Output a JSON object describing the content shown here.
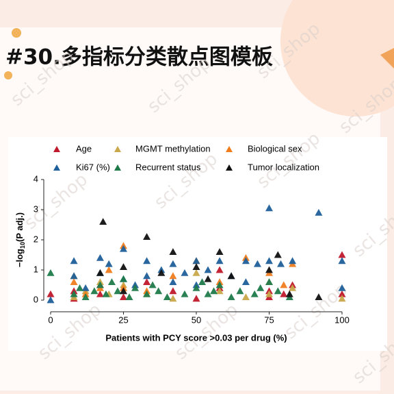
{
  "header": {
    "title": "#30.多指标分类散点图模板",
    "watermark": "sci_shop"
  },
  "chart_data": {
    "type": "scatter",
    "xlabel": "Patients with PCY score >0.03 per drug (%)",
    "ylabel_parts": [
      "−log",
      "10",
      "(P adj.)"
    ],
    "xlim": [
      0,
      100
    ],
    "xticks": [
      0,
      25,
      50,
      75,
      100
    ],
    "ylim": [
      0,
      4
    ],
    "yticks": [
      0,
      1,
      2,
      3,
      4
    ],
    "series": [
      {
        "name": "Age",
        "color": "#c0192b",
        "x": [
          0,
          8,
          8,
          17,
          17,
          25,
          33,
          42,
          50,
          58,
          58,
          75,
          75,
          80,
          83,
          100,
          100
        ],
        "values": [
          0.2,
          0.3,
          0.05,
          0.5,
          0.2,
          0.1,
          0.6,
          0.3,
          0.05,
          1.0,
          0.4,
          0.3,
          0.1,
          0.2,
          0.5,
          1.5,
          0.2
        ]
      },
      {
        "name": "MGMT methylation",
        "color": "#c8a84a",
        "x": [
          8,
          8,
          12,
          17,
          20,
          25,
          33,
          42,
          50,
          58,
          67,
          75,
          75,
          83,
          100
        ],
        "values": [
          0.8,
          0.1,
          0.3,
          0.6,
          0.2,
          0.5,
          0.2,
          0.05,
          0.9,
          0.3,
          0.1,
          0.6,
          0.2,
          0.4,
          0.05
        ]
      },
      {
        "name": "Biological sex",
        "color": "#f07c1c",
        "x": [
          8,
          12,
          17,
          20,
          25,
          25,
          33,
          42,
          50,
          58,
          67,
          75,
          80,
          83
        ],
        "values": [
          0.6,
          0.2,
          0.4,
          1.0,
          1.8,
          0.4,
          0.3,
          0.8,
          1.3,
          0.6,
          1.4,
          0.9,
          0.5,
          1.2
        ]
      },
      {
        "name": "Ki67 (%)",
        "color": "#1f5f99",
        "x": [
          0,
          8,
          8,
          12,
          17,
          17,
          20,
          25,
          25,
          29,
          33,
          33,
          38,
          42,
          42,
          46,
          50,
          50,
          54,
          58,
          62,
          67,
          67,
          71,
          75,
          75,
          79,
          83,
          92,
          100,
          100
        ],
        "values": [
          0,
          1.3,
          0.8,
          0.4,
          1.4,
          0.9,
          1.2,
          1.7,
          0.7,
          0.5,
          1.3,
          0.8,
          1.0,
          1.2,
          0.6,
          0.9,
          1.3,
          0.5,
          1.0,
          1.3,
          0.8,
          1.3,
          0.6,
          1.2,
          3.05,
          1.3,
          1.2,
          1.3,
          2.9,
          1.3,
          0.4
        ]
      },
      {
        "name": "Recurrent status",
        "color": "#1f7a4a",
        "x": [
          0,
          8,
          10,
          12,
          15,
          17,
          19,
          21,
          23,
          25,
          27,
          29,
          33,
          35,
          37,
          40,
          46,
          50,
          52,
          54,
          56,
          58,
          62,
          65,
          70,
          72,
          75,
          78,
          82
        ],
        "values": [
          0.9,
          0.2,
          0.4,
          0.1,
          0.3,
          0.5,
          0.2,
          0.6,
          0.3,
          0.7,
          0.1,
          0.4,
          0.2,
          0.5,
          0.3,
          0.1,
          0.2,
          0.4,
          0.6,
          0.2,
          0.3,
          0.5,
          0.1,
          0.3,
          0.2,
          0.4,
          0.6,
          0.3,
          0.1
        ]
      },
      {
        "name": "Tumor localization",
        "color": "#111111",
        "x": [
          17,
          18,
          25,
          25,
          33,
          38,
          42,
          50,
          54,
          58,
          62,
          75,
          78,
          82,
          92
        ],
        "values": [
          0.9,
          2.6,
          1.1,
          0.3,
          2.1,
          0.9,
          1.6,
          1.1,
          0.7,
          1.6,
          0.8,
          1.0,
          1.5,
          0.2,
          0.1
        ]
      }
    ]
  }
}
